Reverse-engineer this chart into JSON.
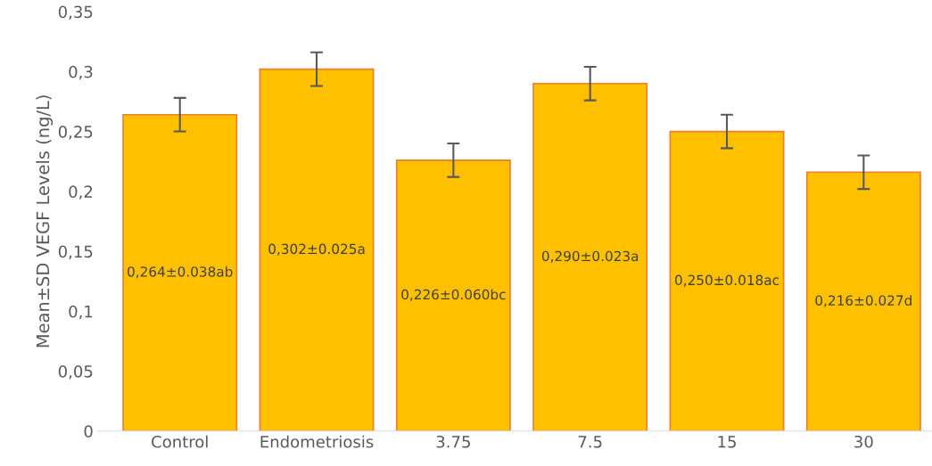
{
  "chart_data": {
    "type": "bar",
    "ylabel": "Mean±SD VEGF Levels (ng/L)",
    "categories": [
      "Control",
      "Endometriosis",
      "3.75",
      "7.5",
      "15",
      "30"
    ],
    "values": [
      0.264,
      0.302,
      0.226,
      0.29,
      0.25,
      0.216
    ],
    "errors": [
      0.014,
      0.014,
      0.014,
      0.014,
      0.014,
      0.014
    ],
    "value_labels": [
      "0,264±0.038ab",
      "0,302±0.025a",
      "0,226±0.060bc",
      "0,290±0.023a",
      "0,250±0.018ac",
      "0,216±0.027d"
    ],
    "color": "#ffc000",
    "ylim": [
      0,
      0.35
    ],
    "yticks": [
      {
        "value": 0,
        "label": "0"
      },
      {
        "value": 0.05,
        "label": "0,05"
      },
      {
        "value": 0.1,
        "label": "0,1"
      },
      {
        "value": 0.15,
        "label": "0,15"
      },
      {
        "value": 0.2,
        "label": "0,2"
      },
      {
        "value": 0.25,
        "label": "0,25"
      },
      {
        "value": 0.3,
        "label": "0,3"
      },
      {
        "value": 0.35,
        "label": "0,35"
      }
    ],
    "grid": false
  }
}
